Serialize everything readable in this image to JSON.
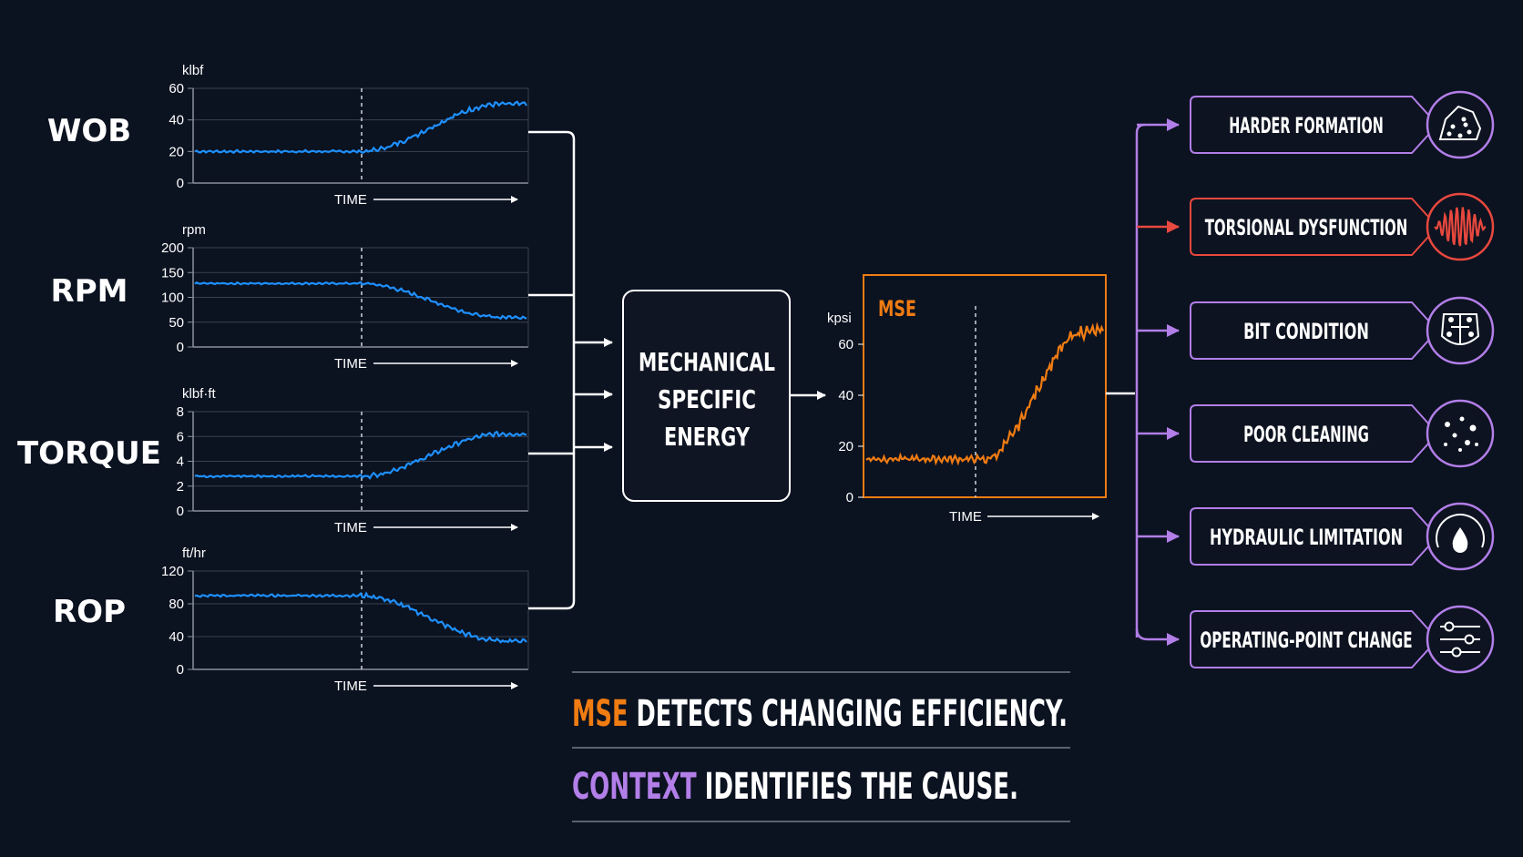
{
  "colors": {
    "background": "#0b1220",
    "input_series": "#1e90ff",
    "mse": "#f07c12",
    "context": "#b27ee8",
    "torsional": "#e8483e",
    "text": "#ffffff",
    "grid": "#3a4150"
  },
  "time_label": "TIME",
  "input_charts": [
    {
      "id": "wob",
      "label": "WOB",
      "unit": "klbf",
      "ticks": [
        "60",
        "40",
        "20",
        "0"
      ],
      "ylim": [
        0,
        60
      ],
      "trend": {
        "before": 20,
        "after": 50,
        "shape": "rise"
      }
    },
    {
      "id": "rpm",
      "label": "RPM",
      "unit": "rpm",
      "ticks": [
        "200",
        "150",
        "100",
        "50",
        "0"
      ],
      "ylim": [
        0,
        200
      ],
      "trend": {
        "before": 128,
        "after": 60,
        "shape": "drop"
      }
    },
    {
      "id": "torque",
      "label": "TORQUE",
      "unit": "klbf·ft",
      "ticks": [
        "8",
        "6",
        "4",
        "2",
        "0"
      ],
      "ylim": [
        0,
        8
      ],
      "trend": {
        "before": 2.8,
        "after": 6.2,
        "shape": "rise"
      }
    },
    {
      "id": "rop",
      "label": "ROP",
      "unit": "ft/hr",
      "ticks": [
        "120",
        "80",
        "40",
        "0"
      ],
      "ylim": [
        0,
        120
      ],
      "trend": {
        "before": 90,
        "after": 35,
        "shape": "drop"
      }
    }
  ],
  "mse_box": {
    "line1": "MECHANICAL",
    "line2": "SPECIFIC",
    "line3": "ENERGY"
  },
  "mse_chart": {
    "title": "MSE",
    "unit": "kpsi",
    "ticks": [
      "60",
      "40",
      "20",
      "0"
    ],
    "ylim": [
      0,
      75
    ],
    "trend": {
      "before": 15,
      "after": 65,
      "shape": "rise"
    }
  },
  "causes": [
    {
      "id": "harder-formation",
      "label": "HARDER FORMATION",
      "icon": "rock-icon",
      "highlight": false
    },
    {
      "id": "torsional-dysfunction",
      "label": "TORSIONAL DYSFUNCTION",
      "icon": "waveform-icon",
      "highlight": true
    },
    {
      "id": "bit-condition",
      "label": "BIT CONDITION",
      "icon": "drill-bit-icon",
      "highlight": false
    },
    {
      "id": "poor-cleaning",
      "label": "POOR CLEANING",
      "icon": "cuttings-icon",
      "highlight": false
    },
    {
      "id": "hydraulic-limitation",
      "label": "HYDRAULIC LIMITATION",
      "icon": "gauge-drop-icon",
      "highlight": false
    },
    {
      "id": "operating-point-change",
      "label": "OPERATING-POINT CHANGE",
      "icon": "sliders-icon",
      "highlight": false
    }
  ],
  "footer": {
    "line1_accent": "MSE",
    "line1_rest": " DETECTS CHANGING EFFICIENCY.",
    "line2_accent": "CONTEXT",
    "line2_rest": " IDENTIFIES THE CAUSE."
  }
}
